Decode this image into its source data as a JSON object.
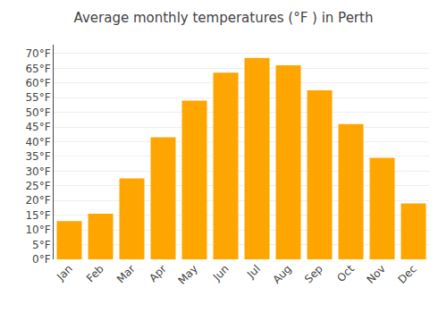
{
  "chart_data": {
    "type": "bar",
    "title": "Average monthly temperatures (°F ) in Perth",
    "categories": [
      "Jan",
      "Feb",
      "Mar",
      "Apr",
      "May",
      "Jun",
      "Jul",
      "Aug",
      "Sep",
      "Oct",
      "Nov",
      "Dec"
    ],
    "values": [
      13,
      15.5,
      27.5,
      41.5,
      54,
      63.5,
      68.5,
      66,
      57.5,
      46,
      34.5,
      19
    ],
    "color": "#FFA500",
    "ylim": [
      0,
      73
    ],
    "yticks": [
      {
        "value": 0,
        "label": "0°F"
      },
      {
        "value": 5,
        "label": "5°F"
      },
      {
        "value": 10,
        "label": "10°F"
      },
      {
        "value": 15,
        "label": "15°F"
      },
      {
        "value": 20,
        "label": "20°F"
      },
      {
        "value": 25,
        "label": "25°F"
      },
      {
        "value": 30,
        "label": "30°F"
      },
      {
        "value": 35,
        "label": "35°F"
      },
      {
        "value": 40,
        "label": "40°F"
      },
      {
        "value": 45,
        "label": "45°F"
      },
      {
        "value": 50,
        "label": "50°F"
      },
      {
        "value": 55,
        "label": "55°F"
      },
      {
        "value": 60,
        "label": "60°F"
      },
      {
        "value": 65,
        "label": "65°F"
      },
      {
        "value": 70,
        "label": "70°F"
      }
    ],
    "grid": true
  }
}
